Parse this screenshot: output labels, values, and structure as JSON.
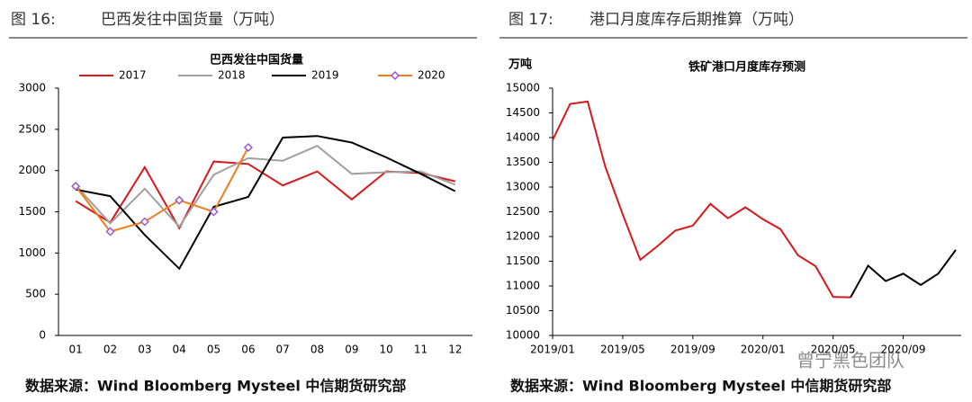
{
  "headers": [
    {
      "figure": "图 16:",
      "caption": "巴西发往中国货量（万吨）"
    },
    {
      "figure": "图 17:",
      "caption": "港口月度库存后期推算（万吨）"
    }
  ],
  "sources": [
    "数据来源：Wind Bloomberg Mysteel 中信期货研究部",
    "数据来源：Wind Bloomberg Mysteel 中信期货研究部"
  ],
  "watermark": "曾宁黑色团队",
  "chart_data": [
    {
      "type": "line",
      "title": "巴西发往中国货量",
      "categories": [
        "01",
        "02",
        "03",
        "04",
        "05",
        "06",
        "07",
        "08",
        "09",
        "10",
        "11",
        "12"
      ],
      "series": [
        {
          "name": "2017",
          "color": "#d7191c",
          "values": [
            1630,
            1370,
            2040,
            1300,
            2110,
            2080,
            1820,
            1990,
            1650,
            1990,
            1970,
            1870
          ]
        },
        {
          "name": "2018",
          "color": "#a0a0a0",
          "values": [
            1820,
            1360,
            1780,
            1320,
            1950,
            2150,
            2120,
            2300,
            1960,
            1980,
            1990,
            1830
          ]
        },
        {
          "name": "2019",
          "color": "#000000",
          "values": [
            1770,
            1690,
            1220,
            810,
            1560,
            1680,
            2400,
            2420,
            2340,
            2160,
            1960,
            1750
          ]
        },
        {
          "name": "2020",
          "color": "#f07d1a",
          "marker": "diamond",
          "marker_color": "#9b59d0",
          "values": [
            1810,
            1260,
            1380,
            1640,
            1500,
            2280,
            null,
            null,
            null,
            null,
            null,
            null
          ]
        }
      ],
      "ylim": [
        0,
        3000
      ],
      "yticks": [
        0,
        500,
        1000,
        1500,
        2000,
        2500,
        3000
      ],
      "legend": "top"
    },
    {
      "type": "line",
      "title": "铁矿港口月度库存预测",
      "ylabel": "万吨",
      "categories": [
        "2019/01",
        null,
        null,
        null,
        "2019/05",
        null,
        null,
        null,
        "2019/09",
        null,
        null,
        null,
        "2020/01",
        null,
        null,
        null,
        "2020/05",
        null,
        null,
        null,
        "2020/09",
        null,
        null,
        null
      ],
      "series": [
        {
          "color": "#d7191c",
          "values": [
            13950,
            14680,
            14730,
            13420,
            12450,
            11530,
            11810,
            12120,
            12220,
            12660,
            12370,
            12590,
            12350,
            12150,
            11620,
            11400,
            10780,
            10770,
            null,
            null,
            null,
            null,
            null,
            null
          ]
        },
        {
          "color": "#000000",
          "values": [
            null,
            null,
            null,
            null,
            null,
            null,
            null,
            null,
            null,
            null,
            null,
            null,
            null,
            null,
            null,
            null,
            null,
            10770,
            11410,
            11100,
            11250,
            11020,
            11250,
            11730
          ]
        }
      ],
      "ylim": [
        10000,
        15000
      ],
      "yticks": [
        10000,
        10500,
        11000,
        11500,
        12000,
        12500,
        13000,
        13500,
        14000,
        14500,
        15000
      ]
    }
  ]
}
